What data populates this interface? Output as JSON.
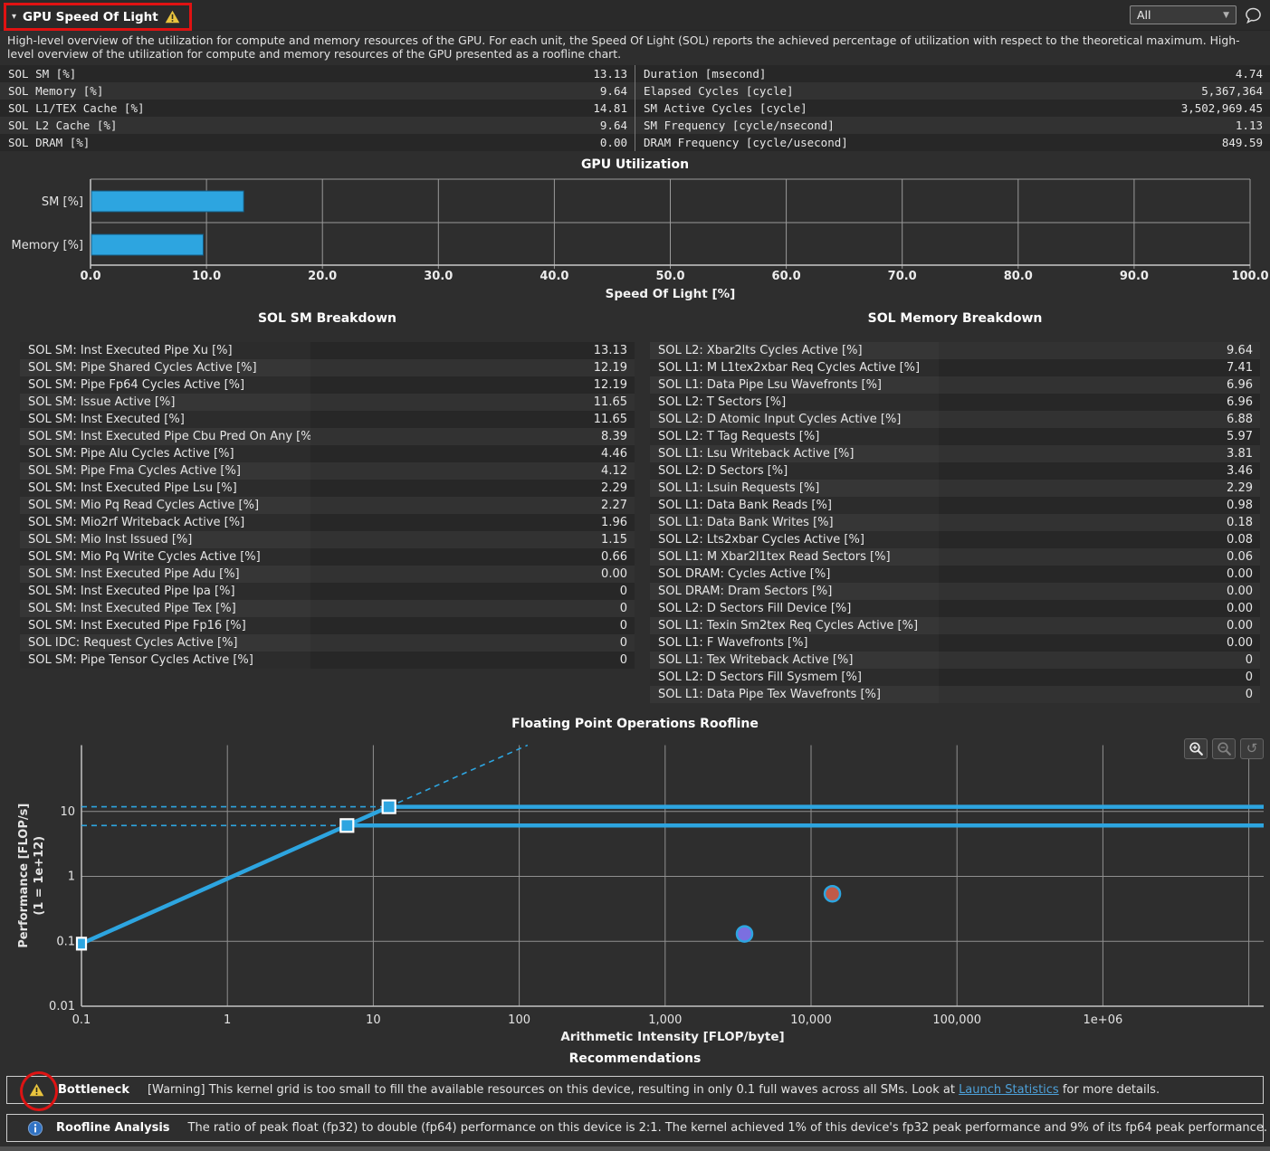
{
  "header": {
    "title": "GPU Speed Of Light",
    "filter_value": "All",
    "description": "High-level overview of the utilization for compute and memory resources of the GPU. For each unit, the Speed Of Light (SOL) reports the achieved percentage of utilization with respect to the theoretical maximum. High-level overview of the utilization for compute and memory resources of the GPU presented as a roofline chart."
  },
  "titles": {
    "sol_sm_breakdown": "SOL SM Breakdown",
    "sol_memory_breakdown": "SOL Memory Breakdown",
    "recommendations": "Recommendations"
  },
  "summary": {
    "left_rows": [
      [
        "SOL SM [%]",
        "13.13"
      ],
      [
        "SOL Memory [%]",
        "9.64"
      ],
      [
        "SOL L1/TEX Cache [%]",
        "14.81"
      ],
      [
        "SOL L2 Cache [%]",
        "9.64"
      ],
      [
        "SOL DRAM [%]",
        "0.00"
      ]
    ],
    "right_rows": [
      [
        "Duration [msecond]",
        "4.74"
      ],
      [
        "Elapsed Cycles [cycle]",
        "5,367,364"
      ],
      [
        "SM Active Cycles [cycle]",
        "3,502,969.45"
      ],
      [
        "SM Frequency [cycle/nsecond]",
        "1.13"
      ],
      [
        "DRAM Frequency [cycle/usecond]",
        "849.59"
      ]
    ]
  },
  "sol_sm_rows": [
    [
      "SOL SM: Inst Executed Pipe Xu [%]",
      "13.13"
    ],
    [
      "SOL SM: Pipe Shared Cycles Active [%]",
      "12.19"
    ],
    [
      "SOL SM: Pipe Fp64 Cycles Active [%]",
      "12.19"
    ],
    [
      "SOL SM: Issue Active [%]",
      "11.65"
    ],
    [
      "SOL SM: Inst Executed [%]",
      "11.65"
    ],
    [
      "SOL SM: Inst Executed Pipe Cbu Pred On Any [%]",
      "8.39"
    ],
    [
      "SOL SM: Pipe Alu Cycles Active [%]",
      "4.46"
    ],
    [
      "SOL SM: Pipe Fma Cycles Active [%]",
      "4.12"
    ],
    [
      "SOL SM: Inst Executed Pipe Lsu [%]",
      "2.29"
    ],
    [
      "SOL SM: Mio Pq Read Cycles Active [%]",
      "2.27"
    ],
    [
      "SOL SM: Mio2rf Writeback Active [%]",
      "1.96"
    ],
    [
      "SOL SM: Mio Inst Issued [%]",
      "1.15"
    ],
    [
      "SOL SM: Mio Pq Write Cycles Active [%]",
      "0.66"
    ],
    [
      "SOL SM: Inst Executed Pipe Adu [%]",
      "0.00"
    ],
    [
      "SOL SM: Inst Executed Pipe Ipa [%]",
      "0"
    ],
    [
      "SOL SM: Inst Executed Pipe Tex [%]",
      "0"
    ],
    [
      "SOL SM: Inst Executed Pipe Fp16 [%]",
      "0"
    ],
    [
      "SOL IDC: Request Cycles Active [%]",
      "0"
    ],
    [
      "SOL SM: Pipe Tensor Cycles Active [%]",
      "0"
    ]
  ],
  "sol_memory_rows": [
    [
      "SOL L2: Xbar2lts Cycles Active [%]",
      "9.64"
    ],
    [
      "SOL L1: M L1tex2xbar Req Cycles Active [%]",
      "7.41"
    ],
    [
      "SOL L1: Data Pipe Lsu Wavefronts [%]",
      "6.96"
    ],
    [
      "SOL L2: T Sectors [%]",
      "6.96"
    ],
    [
      "SOL L2: D Atomic Input Cycles Active [%]",
      "6.88"
    ],
    [
      "SOL L2: T Tag Requests [%]",
      "5.97"
    ],
    [
      "SOL L1: Lsu Writeback Active [%]",
      "3.81"
    ],
    [
      "SOL L2: D Sectors [%]",
      "3.46"
    ],
    [
      "SOL L1: Lsuin Requests [%]",
      "2.29"
    ],
    [
      "SOL L1: Data Bank Reads [%]",
      "0.98"
    ],
    [
      "SOL L1: Data Bank Writes [%]",
      "0.18"
    ],
    [
      "SOL L2: Lts2xbar Cycles Active [%]",
      "0.08"
    ],
    [
      "SOL L1: M Xbar2l1tex Read Sectors [%]",
      "0.06"
    ],
    [
      "SOL DRAM: Cycles Active [%]",
      "0.00"
    ],
    [
      "SOL DRAM: Dram Sectors [%]",
      "0.00"
    ],
    [
      "SOL L2: D Sectors Fill Device [%]",
      "0.00"
    ],
    [
      "SOL L1: Texin Sm2tex Req Cycles Active [%]",
      "0.00"
    ],
    [
      "SOL L1: F Wavefronts [%]",
      "0.00"
    ],
    [
      "SOL L1: Tex Writeback Active [%]",
      "0"
    ],
    [
      "SOL L2: D Sectors Fill Sysmem [%]",
      "0"
    ],
    [
      "SOL L1: Data Pipe Tex Wavefronts [%]",
      "0"
    ]
  ],
  "chart_data": [
    {
      "type": "bar",
      "orientation": "horizontal",
      "title": "GPU Utilization",
      "categories": [
        "SM [%]",
        "Memory [%]"
      ],
      "values": [
        13.13,
        9.64
      ],
      "xlabel": "Speed Of Light [%]",
      "xlim": [
        0,
        100
      ],
      "xtick_labels": [
        "0.0",
        "10.0",
        "20.0",
        "30.0",
        "40.0",
        "50.0",
        "60.0",
        "70.0",
        "80.0",
        "90.0",
        "100.0"
      ],
      "bar_color": "#2da5e0",
      "grid": true
    },
    {
      "type": "line",
      "title": "Floating Point Operations Roofline",
      "xlabel": "Arithmetic Intensity [FLOP/byte]",
      "ylabel": "Performance [FLOP/s]",
      "ylabel_note": "(1 = 1e+12)",
      "xscale": "log",
      "yscale": "log",
      "xticks": {
        "values": [
          0.1,
          1,
          10,
          100,
          1000,
          10000,
          100000,
          1000000
        ],
        "labels": [
          "0.1",
          "1",
          "10",
          "100",
          "1,000",
          "10,000",
          "100,000",
          "1e+06"
        ]
      },
      "extra_x_gridlines": [
        10000000
      ],
      "yticks": {
        "values": [
          0.01,
          0.1,
          1,
          10
        ],
        "labels": [
          "0.01",
          "0.1",
          "1",
          "10"
        ]
      },
      "ylim_top": 105,
      "rooflines": [
        {
          "name": "fp32 peak roofline",
          "peak_performance_tflops": 11.8,
          "ridge_intensity": 12.8
        },
        {
          "name": "fp64 peak roofline",
          "peak_performance_tflops": 6.07,
          "ridge_intensity": 6.6
        }
      ],
      "memory_bandwidth_diagonal": {
        "start_intensity": 0.1,
        "tflops_per_intensity": 0.92
      },
      "achieved_points": [
        {
          "name": "fp32 achieved",
          "intensity": 3500,
          "performance_tflops": 0.13,
          "color": "#7b6fe0"
        },
        {
          "name": "fp64 achieved",
          "intensity": 14000,
          "performance_tflops": 0.54,
          "color": "#c05a48"
        }
      ],
      "line_color": "#2da5e0"
    }
  ],
  "recommendations": {
    "bottleneck": {
      "label": "Bottleneck",
      "text_before": "[Warning] This kernel grid is too small to fill the available resources on this device, resulting in only 0.1 full waves across all SMs. Look at ",
      "link_text": "Launch Statistics",
      "text_after": " for more details."
    },
    "roofline_analysis": {
      "label": "Roofline Analysis",
      "text": "The ratio of peak float (fp32) to double (fp64) performance on this device is 2:1. The kernel achieved 1% of this device's fp32 peak performance and 9% of its fp64 peak performance."
    }
  },
  "colors": {
    "accent_blue": "#2da5e0",
    "warning_yellow": "#e9c43e",
    "info_blue": "#3173c4",
    "link_blue": "#4da0d8",
    "annotation_red": "#e01212",
    "point_purple": "#7b6fe0",
    "point_orange": "#c05a48"
  }
}
